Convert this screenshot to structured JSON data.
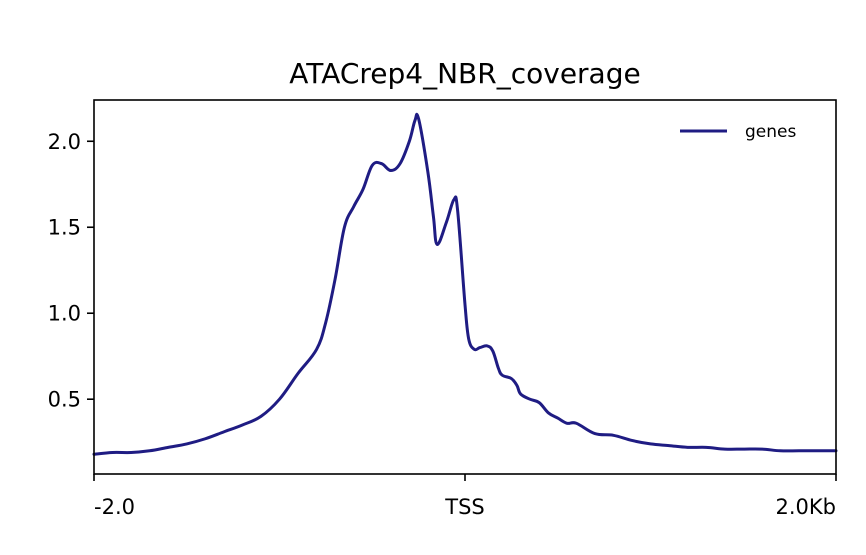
{
  "chart_data": {
    "type": "line",
    "title": "ATACrep4_NBR_coverage",
    "xlabel": "",
    "ylabel": "",
    "x_ticks": [
      "-2.0",
      "TSS",
      "2.0Kb"
    ],
    "x_tick_positions": [
      -2.0,
      0.0,
      2.0
    ],
    "xlim": [
      -2.0,
      2.0
    ],
    "y_ticks": [
      "0.5",
      "1.0",
      "1.5",
      "2.0"
    ],
    "y_tick_values": [
      0.5,
      1.0,
      1.5,
      2.0
    ],
    "ylim": [
      0.065,
      2.24
    ],
    "grid": false,
    "legend_position": "top-right",
    "line_color": "#1f1c83",
    "series": [
      {
        "name": "genes",
        "x": [
          -2.0,
          -1.9,
          -1.8,
          -1.7,
          -1.6,
          -1.5,
          -1.4,
          -1.3,
          -1.2,
          -1.1,
          -1.0,
          -0.9,
          -0.8,
          -0.75,
          -0.7,
          -0.65,
          -0.6,
          -0.55,
          -0.5,
          -0.45,
          -0.4,
          -0.35,
          -0.3,
          -0.27,
          -0.25,
          -0.2,
          -0.17,
          -0.15,
          -0.1,
          -0.06,
          -0.04,
          0.0,
          0.02,
          0.05,
          0.08,
          0.12,
          0.15,
          0.18,
          0.2,
          0.25,
          0.28,
          0.3,
          0.35,
          0.4,
          0.45,
          0.5,
          0.55,
          0.6,
          0.7,
          0.8,
          0.9,
          1.0,
          1.1,
          1.2,
          1.3,
          1.4,
          1.5,
          1.6,
          1.7,
          1.8,
          1.9,
          2.0
        ],
        "y": [
          0.18,
          0.19,
          0.19,
          0.2,
          0.22,
          0.24,
          0.27,
          0.31,
          0.35,
          0.4,
          0.5,
          0.65,
          0.79,
          0.95,
          1.2,
          1.5,
          1.62,
          1.72,
          1.86,
          1.87,
          1.83,
          1.87,
          2.0,
          2.12,
          2.13,
          1.82,
          1.56,
          1.4,
          1.53,
          1.66,
          1.6,
          1.05,
          0.85,
          0.79,
          0.8,
          0.81,
          0.78,
          0.68,
          0.64,
          0.62,
          0.58,
          0.53,
          0.5,
          0.48,
          0.42,
          0.39,
          0.36,
          0.36,
          0.3,
          0.29,
          0.26,
          0.24,
          0.23,
          0.22,
          0.22,
          0.21,
          0.21,
          0.21,
          0.2,
          0.2,
          0.2,
          0.2
        ]
      }
    ]
  }
}
